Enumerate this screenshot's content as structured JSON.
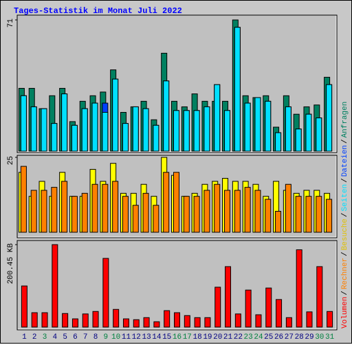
{
  "chart_data": [
    {
      "type": "bar",
      "title": "Tages-Statistik im Monat Juli 2022",
      "categories": [
        "1",
        "2",
        "3",
        "4",
        "5",
        "6",
        "7",
        "8",
        "9",
        "10",
        "11",
        "12",
        "13",
        "14",
        "15",
        "16",
        "17",
        "18",
        "19",
        "20",
        "21",
        "22",
        "23",
        "24",
        "25",
        "26",
        "27",
        "28",
        "29",
        "30",
        "31"
      ],
      "category_colors": [
        "#000080",
        "#000080",
        "#008040",
        "#000080",
        "#000080",
        "#000080",
        "#000080",
        "#000080",
        "#008040",
        "#008040",
        "#000080",
        "#000080",
        "#000080",
        "#000080",
        "#000080",
        "#008040",
        "#008040",
        "#000080",
        "#000080",
        "#000080",
        "#000080",
        "#000080",
        "#008040",
        "#008040",
        "#000080",
        "#000080",
        "#000080",
        "#000080",
        "#000080",
        "#008040",
        "#008040"
      ],
      "series": [
        {
          "name": "Anfragen",
          "color": "#008060",
          "values": [
            34,
            34,
            23,
            30,
            34,
            16,
            27,
            30,
            32,
            44,
            21,
            24,
            27,
            17,
            53,
            27,
            24,
            31,
            27,
            27,
            27,
            71,
            30,
            29,
            30,
            13,
            30,
            20,
            24,
            25,
            40
          ]
        },
        {
          "name": "Dateien",
          "color": "#0040ff",
          "values": [
            30,
            24,
            23,
            15,
            31,
            14,
            23,
            26,
            26,
            39,
            15,
            24,
            23,
            14,
            38,
            22,
            22,
            22,
            24,
            36,
            22,
            67,
            26,
            29,
            27,
            10,
            24,
            12,
            20,
            18,
            36
          ]
        },
        {
          "name": "Seiten",
          "color": "#00e0ff",
          "values": [
            30,
            24,
            23,
            15,
            31,
            14,
            23,
            26,
            21,
            39,
            15,
            24,
            23,
            14,
            38,
            22,
            22,
            22,
            24,
            36,
            22,
            67,
            26,
            29,
            27,
            10,
            24,
            12,
            20,
            18,
            36
          ]
        }
      ],
      "ylim": [
        0,
        71
      ],
      "yticks": [
        71
      ]
    },
    {
      "type": "bar",
      "series": [
        {
          "name": "Besuche",
          "color": "#ffff00",
          "values": [
            20,
            12,
            17,
            12,
            20,
            12,
            12,
            21,
            17,
            23,
            13,
            13,
            16,
            12,
            25,
            19,
            12,
            13,
            16,
            17,
            18,
            17,
            17,
            16,
            12,
            17,
            14,
            13,
            14,
            14,
            13
          ]
        },
        {
          "name": "Rechner",
          "color": "#ff8000",
          "values": [
            22,
            14,
            14,
            15,
            17,
            12,
            13,
            16,
            16,
            17,
            12,
            9,
            13,
            9,
            20,
            20,
            12,
            12,
            14,
            16,
            14,
            14,
            15,
            14,
            11,
            7,
            16,
            12,
            12,
            12,
            11
          ]
        }
      ],
      "ylim": [
        0,
        25
      ],
      "yticks": [
        25
      ]
    },
    {
      "type": "bar",
      "series": [
        {
          "name": "Volumen",
          "color": "#ff0000",
          "values": [
            100,
            35,
            35,
            200.45,
            33,
            20,
            32,
            38,
            167,
            43,
            20,
            18,
            23,
            13,
            40,
            35,
            28,
            23,
            23,
            97,
            147,
            32,
            90,
            30,
            95,
            67,
            23,
            188,
            37,
            147,
            38
          ]
        }
      ],
      "ylim": [
        0,
        200.45
      ],
      "yticks": [
        {
          "value": 200.45,
          "label": "200.45 KB"
        }
      ]
    }
  ],
  "legend_separator": "/"
}
